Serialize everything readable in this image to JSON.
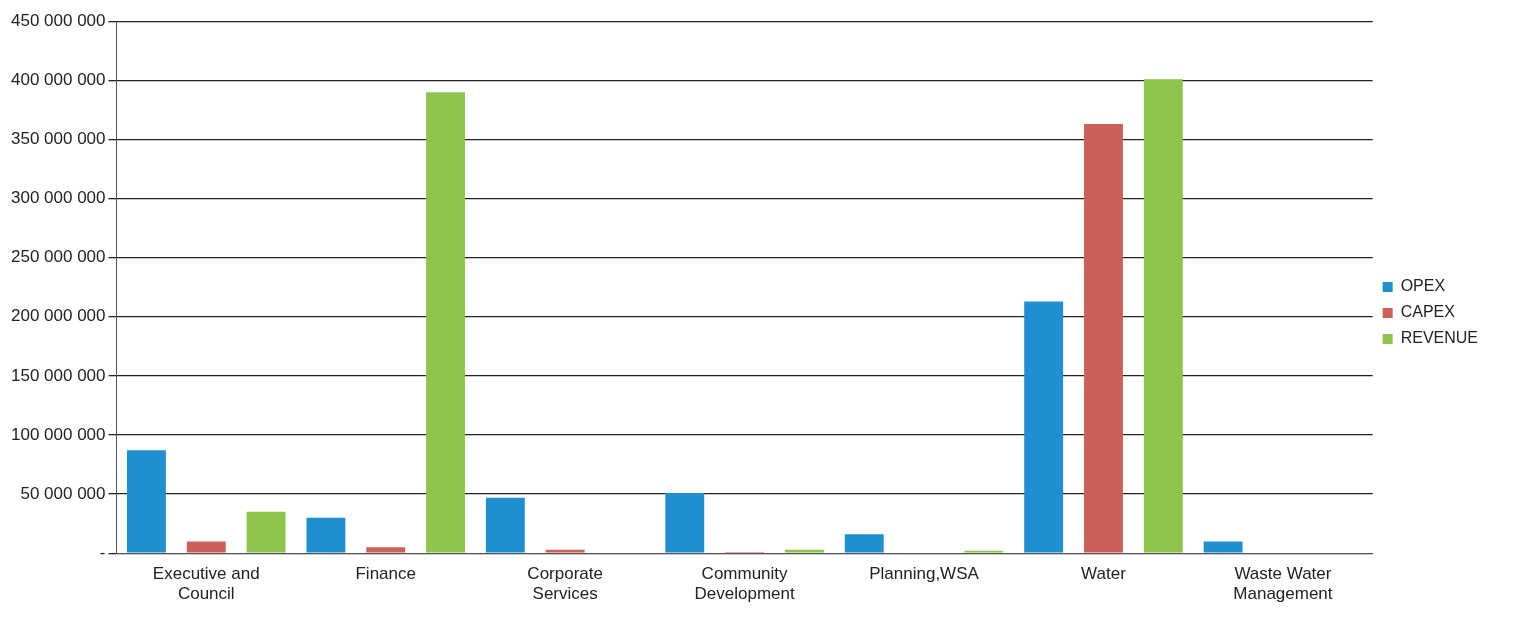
{
  "chart_data": {
    "type": "bar",
    "categories": [
      "Executive and Council",
      "Finance",
      "Corporate Services",
      "Community Development",
      "Planning,WSA",
      "Water",
      "Waste Water Management"
    ],
    "series": [
      {
        "name": "OPEX",
        "color": "#1f8fd1",
        "values": [
          87000000,
          30000000,
          47000000,
          51000000,
          16000000,
          213000000,
          10000000
        ]
      },
      {
        "name": "CAPEX",
        "color": "#cc6058",
        "values": [
          10000000,
          5000000,
          3000000,
          1000000,
          null,
          363000000,
          null
        ]
      },
      {
        "name": "REVENUE",
        "color": "#8cc44c",
        "values": [
          35000000,
          390000000,
          null,
          3000000,
          2000000,
          401000000,
          null
        ]
      }
    ],
    "ylim": [
      0,
      450000000
    ],
    "yticks": [
      {
        "value": 0,
        "label": "-"
      },
      {
        "value": 50000000,
        "label": "50 000 000"
      },
      {
        "value": 100000000,
        "label": "100 000 000"
      },
      {
        "value": 150000000,
        "label": "150 000 000"
      },
      {
        "value": 200000000,
        "label": "200 000 000"
      },
      {
        "value": 250000000,
        "label": "250 000 000"
      },
      {
        "value": 300000000,
        "label": "300 000 000"
      },
      {
        "value": 350000000,
        "label": "350 000 000"
      },
      {
        "value": 400000000,
        "label": "400 000 000"
      },
      {
        "value": 450000000,
        "label": "450 000 000"
      }
    ],
    "grid": "y",
    "legend": "right"
  }
}
